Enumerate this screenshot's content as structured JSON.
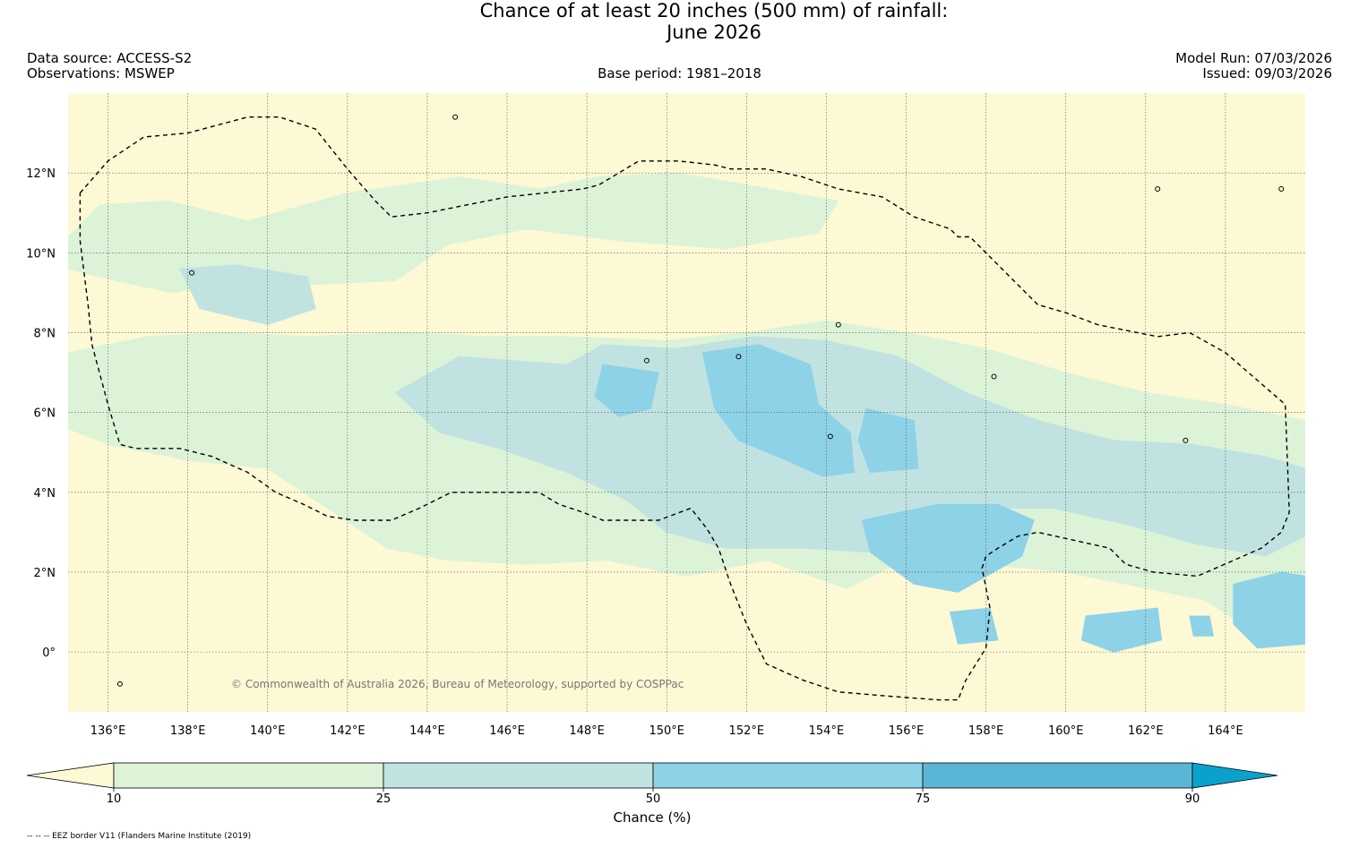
{
  "title": {
    "line1": "Chance of at least 20 inches (500  mm) of rainfall:",
    "line2": "June 2026"
  },
  "header": {
    "data_source": "Data source: ACCESS-S2",
    "observations": "Observations: MSWEP",
    "base_period": "Base period: 1981–2018",
    "model_run": "Model Run: 07/03/2026",
    "issued": "Issued: 09/03/2026"
  },
  "copyright": "© Commonwealth of Australia 2026, Bureau of Meteorology, supported by COSPPac",
  "footnote": "-- -- -- EEZ border V11 (Flanders Marine Institute (2019)",
  "chart_data": {
    "type": "heatmap",
    "title": "Chance of at least 20 inches (500  mm) of rainfall: June 2026",
    "lon_range": [
      135,
      166
    ],
    "lat_range": [
      -1.5,
      14
    ],
    "x_ticks": [
      {
        "value": 136,
        "label": "136°E"
      },
      {
        "value": 138,
        "label": "138°E"
      },
      {
        "value": 140,
        "label": "140°E"
      },
      {
        "value": 142,
        "label": "142°E"
      },
      {
        "value": 144,
        "label": "144°E"
      },
      {
        "value": 146,
        "label": "146°E"
      },
      {
        "value": 148,
        "label": "148°E"
      },
      {
        "value": 150,
        "label": "150°E"
      },
      {
        "value": 152,
        "label": "152°E"
      },
      {
        "value": 154,
        "label": "154°E"
      },
      {
        "value": 156,
        "label": "156°E"
      },
      {
        "value": 158,
        "label": "158°E"
      },
      {
        "value": 160,
        "label": "160°E"
      },
      {
        "value": 162,
        "label": "162°E"
      },
      {
        "value": 164,
        "label": "164°E"
      }
    ],
    "y_ticks": [
      {
        "value": 12,
        "label": "12°N"
      },
      {
        "value": 10,
        "label": "10°N"
      },
      {
        "value": 8,
        "label": "8°N"
      },
      {
        "value": 6,
        "label": "6°N"
      },
      {
        "value": 4,
        "label": "4°N"
      },
      {
        "value": 2,
        "label": "2°N"
      },
      {
        "value": 0,
        "label": "0°"
      }
    ],
    "colorbar": {
      "label": "Chance (%)",
      "boundaries": [
        10,
        25,
        50,
        75,
        90
      ],
      "colors": [
        "#fdf9d5",
        "#dcf3d8",
        "#c0e3e1",
        "#8ed2e8",
        "#5bb6d6",
        "#0aa2cc"
      ]
    },
    "zones": [
      {
        "level": 1,
        "rings": [
          [
            [
              135,
              10.4
            ],
            [
              135.8,
              11.2
            ],
            [
              137.5,
              11.3
            ],
            [
              139.5,
              10.8
            ],
            [
              142,
              11.5
            ],
            [
              144.8,
              11.9
            ],
            [
              146.8,
              11.6
            ],
            [
              148.3,
              11.9
            ],
            [
              150.3,
              12
            ],
            [
              152,
              11.7
            ],
            [
              154.3,
              11.3
            ],
            [
              153.8,
              10.5
            ],
            [
              151.5,
              10.1
            ],
            [
              148.8,
              10.3
            ],
            [
              146.5,
              10.6
            ],
            [
              144.5,
              10.2
            ],
            [
              143.2,
              9.3
            ],
            [
              141,
              9.2
            ],
            [
              139.2,
              9.3
            ],
            [
              137.6,
              9
            ],
            [
              136.2,
              9.3
            ],
            [
              135,
              9.6
            ]
          ],
          [
            [
              135,
              7.5
            ],
            [
              137,
              7.9
            ],
            [
              139,
              8
            ],
            [
              141,
              7.9
            ],
            [
              143.5,
              8
            ],
            [
              145.5,
              7.9
            ],
            [
              147.5,
              7.9
            ],
            [
              150,
              7.8
            ],
            [
              152,
              8
            ],
            [
              154,
              8.3
            ],
            [
              156,
              8
            ],
            [
              158,
              7.6
            ],
            [
              160,
              7
            ],
            [
              162,
              6.5
            ],
            [
              164,
              6.2
            ],
            [
              166,
              5.8
            ],
            [
              166,
              0.8
            ],
            [
              165,
              0.3
            ],
            [
              163.5,
              1.3
            ],
            [
              162,
              1.6
            ],
            [
              160,
              2
            ],
            [
              158,
              2.2
            ],
            [
              156,
              2.3
            ],
            [
              154.5,
              1.6
            ],
            [
              152.5,
              2.3
            ],
            [
              150.5,
              1.9
            ],
            [
              148.5,
              2.3
            ],
            [
              146.5,
              2.2
            ],
            [
              144.5,
              2.3
            ],
            [
              143,
              2.6
            ],
            [
              141.5,
              3.6
            ],
            [
              140,
              4.6
            ],
            [
              138,
              4.8
            ],
            [
              136,
              5.2
            ],
            [
              135,
              5.6
            ]
          ]
        ]
      },
      {
        "level": 2,
        "rings": [
          [
            [
              137.8,
              9.6
            ],
            [
              139.2,
              9.7
            ],
            [
              141,
              9.4
            ],
            [
              141.2,
              8.6
            ],
            [
              140,
              8.2
            ],
            [
              138.3,
              8.6
            ]
          ],
          [
            [
              143.2,
              6.5
            ],
            [
              144.8,
              7.4
            ],
            [
              147.5,
              7.2
            ],
            [
              148.4,
              7.7
            ],
            [
              150.2,
              7.6
            ],
            [
              152.2,
              7.9
            ],
            [
              154,
              7.8
            ],
            [
              155.8,
              7.4
            ],
            [
              157.5,
              6.5
            ],
            [
              159.3,
              5.8
            ],
            [
              161.2,
              5.3
            ],
            [
              163.2,
              5.2
            ],
            [
              165,
              4.9
            ],
            [
              166,
              4.6
            ],
            [
              166,
              2.9
            ],
            [
              165,
              2.4
            ],
            [
              163.3,
              2.7
            ],
            [
              161.5,
              3.2
            ],
            [
              159.7,
              3.6
            ],
            [
              158.2,
              3.6
            ],
            [
              156.5,
              3.3
            ],
            [
              155,
              2.5
            ],
            [
              153.5,
              2.6
            ],
            [
              151.5,
              2.6
            ],
            [
              150,
              3
            ],
            [
              149,
              3.8
            ],
            [
              147.5,
              4.5
            ],
            [
              145.8,
              5.1
            ],
            [
              144.3,
              5.5
            ]
          ]
        ]
      },
      {
        "level": 3,
        "rings": [
          [
            [
              148.4,
              7.2
            ],
            [
              149.8,
              7
            ],
            [
              149.6,
              6.1
            ],
            [
              148.8,
              5.9
            ],
            [
              148.2,
              6.4
            ]
          ],
          [
            [
              150.9,
              7.5
            ],
            [
              152.3,
              7.7
            ],
            [
              153.6,
              7.2
            ],
            [
              153.8,
              6.2
            ],
            [
              154.6,
              5.5
            ],
            [
              154.7,
              4.5
            ],
            [
              153.9,
              4.4
            ],
            [
              153,
              4.8
            ],
            [
              151.8,
              5.3
            ],
            [
              151.2,
              6.1
            ]
          ],
          [
            [
              155,
              6.1
            ],
            [
              156.2,
              5.8
            ],
            [
              156.3,
              4.6
            ],
            [
              155.1,
              4.5
            ],
            [
              154.8,
              5.3
            ]
          ],
          [
            [
              154.9,
              3.3
            ],
            [
              156.8,
              3.7
            ],
            [
              158.3,
              3.7
            ],
            [
              159.2,
              3.3
            ],
            [
              158.9,
              2.4
            ],
            [
              157.3,
              1.5
            ],
            [
              156.2,
              1.7
            ],
            [
              155.1,
              2.5
            ]
          ],
          [
            [
              160.5,
              0.9
            ],
            [
              162.3,
              1.1
            ],
            [
              162.4,
              0.3
            ],
            [
              161.2,
              0
            ],
            [
              160.4,
              0.3
            ]
          ],
          [
            [
              164.2,
              1.7
            ],
            [
              165.4,
              2
            ],
            [
              166,
              1.9
            ],
            [
              166,
              0.2
            ],
            [
              164.8,
              0.1
            ],
            [
              164.2,
              0.7
            ]
          ],
          [
            [
              157.1,
              1
            ],
            [
              158.1,
              1.1
            ],
            [
              158.3,
              0.3
            ],
            [
              157.3,
              0.2
            ]
          ],
          [
            [
              163.1,
              0.9
            ],
            [
              163.6,
              0.9
            ],
            [
              163.7,
              0.4
            ],
            [
              163.2,
              0.4
            ]
          ]
        ]
      }
    ],
    "eez_border": [
      [
        [
          135.3,
          11.5
        ],
        [
          136,
          12.3
        ],
        [
          136.9,
          12.9
        ],
        [
          138,
          13
        ],
        [
          139.5,
          13.4
        ],
        [
          140.3,
          13.4
        ],
        [
          141.2,
          13.1
        ],
        [
          142,
          12.1
        ],
        [
          142.7,
          11.3
        ],
        [
          143.1,
          10.9
        ],
        [
          144,
          11
        ],
        [
          146,
          11.4
        ],
        [
          147.9,
          11.6
        ],
        [
          148.3,
          11.7
        ],
        [
          149.3,
          12.3
        ],
        [
          150.3,
          12.3
        ],
        [
          151.2,
          12.2
        ],
        [
          151.6,
          12.1
        ],
        [
          152.5,
          12.1
        ],
        [
          153.4,
          11.9
        ],
        [
          154.3,
          11.6
        ],
        [
          155.4,
          11.4
        ],
        [
          156.2,
          10.9
        ],
        [
          157.1,
          10.6
        ],
        [
          157.3,
          10.4
        ],
        [
          157.6,
          10.4
        ],
        [
          158.4,
          9.6
        ],
        [
          159.3,
          8.7
        ],
        [
          160,
          8.5
        ],
        [
          160.8,
          8.2
        ],
        [
          162.3,
          7.9
        ],
        [
          163.1,
          8
        ],
        [
          164,
          7.5
        ],
        [
          165.5,
          6.2
        ],
        [
          165.6,
          3.5
        ],
        [
          165.4,
          3
        ],
        [
          164.9,
          2.6
        ],
        [
          163.3,
          1.9
        ],
        [
          162.2,
          2
        ],
        [
          161.5,
          2.2
        ],
        [
          161.1,
          2.6
        ],
        [
          160.2,
          2.8
        ],
        [
          159.3,
          3
        ],
        [
          158.8,
          2.9
        ],
        [
          158.3,
          2.6
        ],
        [
          158,
          2.4
        ],
        [
          157.9,
          2.1
        ],
        [
          158.1,
          1.1
        ],
        [
          158,
          0.1
        ],
        [
          157.5,
          -0.7
        ],
        [
          157.3,
          -1.2
        ],
        [
          156.8,
          -1.2
        ],
        [
          155.5,
          -1.1
        ],
        [
          154.3,
          -1
        ],
        [
          153.4,
          -0.7
        ],
        [
          152.5,
          -0.3
        ],
        [
          152,
          0.7
        ],
        [
          151.6,
          1.7
        ],
        [
          151.3,
          2.6
        ],
        [
          151,
          3.1
        ],
        [
          150.6,
          3.6
        ],
        [
          149.8,
          3.3
        ],
        [
          149.3,
          3.3
        ],
        [
          148.4,
          3.3
        ],
        [
          147.9,
          3.5
        ],
        [
          147.3,
          3.7
        ],
        [
          146.8,
          4
        ],
        [
          146,
          4
        ],
        [
          145,
          4
        ],
        [
          144.6,
          4
        ],
        [
          143.8,
          3.6
        ],
        [
          143.1,
          3.3
        ],
        [
          142.2,
          3.3
        ],
        [
          141.5,
          3.4
        ],
        [
          140.9,
          3.7
        ],
        [
          140.2,
          4
        ],
        [
          139.5,
          4.5
        ],
        [
          138.6,
          4.9
        ],
        [
          137.8,
          5.1
        ],
        [
          136.7,
          5.1
        ],
        [
          136.3,
          5.2
        ],
        [
          136,
          6.2
        ],
        [
          135.6,
          7.7
        ],
        [
          135.5,
          8.7
        ],
        [
          135.3,
          10.3
        ],
        [
          135.3,
          11.5
        ]
      ]
    ],
    "islands": [
      {
        "lon": 144.7,
        "lat": 13.4
      },
      {
        "lon": 138.1,
        "lat": 9.5
      },
      {
        "lon": 151.8,
        "lat": 7.4
      },
      {
        "lon": 149.5,
        "lat": 7.3
      },
      {
        "lon": 158.2,
        "lat": 6.9
      },
      {
        "lon": 163,
        "lat": 5.3
      },
      {
        "lon": 154.1,
        "lat": 5.4
      },
      {
        "lon": 154.3,
        "lat": 8.2
      },
      {
        "lon": 162.3,
        "lat": 11.6
      },
      {
        "lon": 165.4,
        "lat": 11.6
      },
      {
        "lon": 136.3,
        "lat": -0.8
      }
    ]
  }
}
